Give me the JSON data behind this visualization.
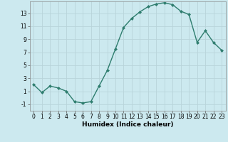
{
  "x": [
    0,
    1,
    2,
    3,
    4,
    5,
    6,
    7,
    8,
    9,
    10,
    11,
    12,
    13,
    14,
    15,
    16,
    17,
    18,
    19,
    20,
    21,
    22,
    23
  ],
  "y": [
    2.0,
    0.8,
    1.8,
    1.5,
    1.0,
    -0.6,
    -0.8,
    -0.6,
    1.8,
    4.2,
    7.5,
    10.8,
    12.2,
    13.2,
    14.0,
    14.4,
    14.6,
    14.3,
    13.3,
    12.8,
    8.5,
    10.3,
    8.5,
    7.3
  ],
  "line_color": "#2e7d6e",
  "marker": "D",
  "marker_size": 2.0,
  "bg_color": "#cce9ef",
  "grid_color": "#b8d4da",
  "xlabel": "Humidex (Indice chaleur)",
  "xlim": [
    -0.5,
    23.5
  ],
  "ylim": [
    -2.0,
    14.8
  ],
  "yticks": [
    -1,
    1,
    3,
    5,
    7,
    9,
    11,
    13
  ],
  "xticks": [
    0,
    1,
    2,
    3,
    4,
    5,
    6,
    7,
    8,
    9,
    10,
    11,
    12,
    13,
    14,
    15,
    16,
    17,
    18,
    19,
    20,
    21,
    22,
    23
  ],
  "tick_fontsize": 5.5,
  "xlabel_fontsize": 6.5,
  "linewidth": 1.0
}
